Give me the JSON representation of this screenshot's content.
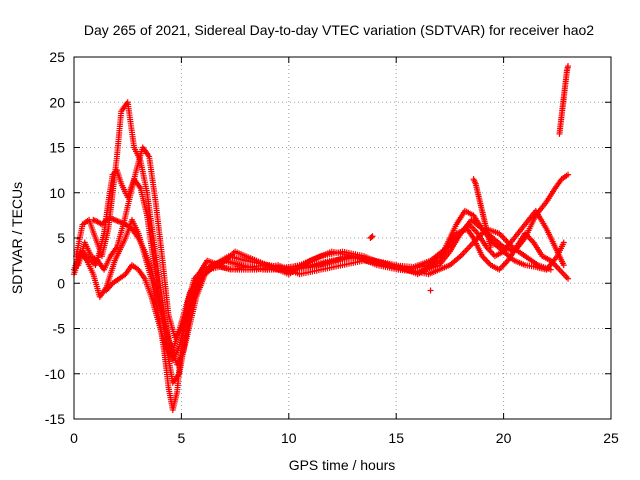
{
  "chart_data": {
    "type": "scatter",
    "title": "Day 265 of 2021, Sidereal Day-to-day VTEC variation (SDTVAR) for receiver hao2",
    "xlabel": "GPS time / hours",
    "ylabel": "SDTVAR / TECUs",
    "xlim": [
      0,
      25
    ],
    "ylim": [
      -15,
      25
    ],
    "xticks": [
      "0",
      "5",
      "10",
      "15",
      "20",
      "25"
    ],
    "yticks": [
      "-15",
      "-10",
      "-5",
      "0",
      "5",
      "10",
      "15",
      "20",
      "25"
    ],
    "grid": true,
    "marker": "+",
    "color": "#ff0000",
    "series": [
      {
        "name": "s1",
        "x": [
          0.0,
          0.3,
          0.6,
          0.9,
          1.2,
          1.5,
          1.7,
          1.9,
          2.1,
          2.4,
          2.7,
          3.0,
          3.3,
          3.6,
          3.9,
          4.2,
          4.4,
          4.6,
          4.8,
          5.0,
          5.3,
          5.6,
          6.0,
          6.5,
          7.0,
          8.0,
          9.0,
          10.0,
          11.0,
          12.0,
          13.0,
          14.0,
          15.0,
          16.0,
          17.0,
          17.8,
          18.3,
          18.6,
          19.0,
          19.4,
          19.8,
          20.2,
          20.6,
          21.0,
          21.4,
          21.8,
          22.2,
          22.6,
          23.0
        ],
        "y": [
          1.5,
          3.5,
          2.5,
          1.0,
          -1.5,
          -0.5,
          1.0,
          2.5,
          3.5,
          5.0,
          7.0,
          5.5,
          3.0,
          0.5,
          -3.0,
          -7.5,
          -11.5,
          -14.0,
          -12.0,
          -7.0,
          -2.0,
          0.5,
          1.5,
          2.0,
          2.5,
          1.8,
          1.5,
          1.8,
          2.0,
          2.5,
          2.8,
          2.5,
          2.0,
          1.0,
          2.5,
          5.5,
          6.0,
          5.0,
          3.0,
          2.0,
          1.5,
          2.5,
          4.0,
          5.5,
          4.5,
          3.0,
          2.5,
          1.5,
          0.5
        ]
      },
      {
        "name": "s2",
        "x": [
          0.1,
          0.4,
          0.7,
          1.0,
          1.3,
          1.6,
          1.8,
          2.0,
          2.2,
          2.5,
          2.8,
          3.1,
          3.4,
          3.7,
          4.0,
          4.3,
          4.6,
          4.9,
          5.2,
          5.5,
          5.8,
          6.2,
          6.8,
          7.5,
          8.5,
          9.5,
          10.5,
          11.5,
          12.5,
          13.5,
          14.5,
          15.5,
          16.5,
          17.2,
          17.8,
          18.2,
          18.6,
          19.0,
          19.5,
          20.0,
          20.5,
          21.0,
          21.5,
          22.0,
          22.5,
          22.8
        ],
        "y": [
          3.0,
          6.5,
          7.0,
          5.0,
          3.0,
          6.0,
          10.0,
          14.0,
          19.0,
          20.0,
          15.0,
          13.5,
          10.0,
          5.0,
          0.0,
          -5.0,
          -8.5,
          -7.0,
          -4.0,
          -1.0,
          1.0,
          2.5,
          2.0,
          3.5,
          2.5,
          1.5,
          2.0,
          3.0,
          3.5,
          3.0,
          2.0,
          1.5,
          2.0,
          3.5,
          6.5,
          8.0,
          7.5,
          6.0,
          4.5,
          3.5,
          2.5,
          2.0,
          1.8,
          1.5,
          3.0,
          4.5
        ]
      },
      {
        "name": "s3",
        "x": [
          0.2,
          0.5,
          0.8,
          1.1,
          1.4,
          1.7,
          2.0,
          2.3,
          2.6,
          2.9,
          3.2,
          3.5,
          3.8,
          4.1,
          4.4,
          4.7,
          5.0,
          5.3,
          5.6,
          6.0,
          6.5,
          7.2,
          8.0,
          9.0,
          10.0,
          11.0,
          12.0,
          13.0,
          14.0,
          15.0,
          16.0,
          17.0,
          17.5,
          18.0,
          18.5,
          19.0,
          19.5,
          20.0,
          20.5,
          21.0,
          21.5,
          22.0,
          22.4,
          22.7,
          23.0
        ],
        "y": [
          2.0,
          4.5,
          3.0,
          2.5,
          1.5,
          3.0,
          4.0,
          6.5,
          9.5,
          12.5,
          15.0,
          14.0,
          9.0,
          3.0,
          -3.5,
          -6.0,
          -5.0,
          -3.5,
          -1.0,
          1.0,
          2.0,
          3.0,
          2.5,
          2.0,
          1.0,
          2.5,
          3.5,
          3.0,
          2.5,
          1.8,
          1.2,
          2.0,
          3.5,
          5.5,
          7.0,
          6.0,
          5.0,
          4.0,
          3.5,
          5.0,
          7.5,
          9.0,
          10.5,
          11.5,
          12.0
        ]
      },
      {
        "name": "s4",
        "x": [
          1.5,
          1.8,
          2.1,
          2.4,
          2.7,
          3.0,
          3.3,
          3.6,
          3.9,
          4.2,
          4.5,
          4.8,
          5.1,
          5.4,
          5.8,
          6.2,
          6.8,
          7.5,
          8.5,
          9.5,
          10.5,
          11.5,
          12.5,
          13.5,
          14.5,
          15.5,
          16.5,
          17.0,
          17.5,
          18.0,
          18.6,
          19.2,
          19.8,
          20.4,
          21.0,
          21.6,
          22.2
        ],
        "y": [
          -0.8,
          0.0,
          0.5,
          1.0,
          2.0,
          1.5,
          0.5,
          -1.5,
          -4.0,
          -6.5,
          -8.0,
          -6.0,
          -3.5,
          -1.0,
          0.5,
          1.5,
          1.8,
          1.5,
          1.5,
          2.0,
          1.0,
          1.5,
          2.0,
          2.5,
          2.0,
          1.5,
          1.0,
          1.5,
          2.0,
          3.0,
          4.5,
          6.0,
          5.5,
          4.0,
          3.0,
          2.0,
          1.5
        ]
      },
      {
        "name": "s5",
        "x": [
          0.0,
          0.2,
          0.4,
          0.6,
          0.8,
          1.0,
          1.2,
          1.4,
          1.6,
          1.8,
          2.0,
          2.2,
          2.5,
          2.8,
          3.1,
          3.4,
          3.7,
          4.0,
          4.3,
          4.6,
          4.9,
          5.2,
          5.5,
          5.9,
          6.4,
          7.0,
          7.8,
          8.8,
          9.8,
          10.8,
          11.8,
          12.8,
          13.8,
          14.8,
          15.8,
          16.6,
          17.4,
          18.0,
          18.4,
          18.8,
          19.2,
          19.6,
          20.0,
          20.5,
          21.0,
          21.5,
          22.0,
          22.4,
          22.8
        ],
        "y": [
          1.0,
          2.5,
          3.5,
          3.0,
          2.5,
          2.0,
          3.5,
          5.5,
          9.0,
          12.0,
          12.5,
          11.0,
          9.5,
          11.5,
          10.5,
          7.5,
          2.5,
          -2.0,
          -7.0,
          -11.0,
          -10.0,
          -6.0,
          -2.0,
          0.5,
          2.0,
          2.5,
          2.0,
          1.5,
          1.5,
          1.8,
          2.2,
          3.0,
          2.5,
          2.0,
          1.8,
          2.5,
          4.0,
          5.5,
          6.5,
          5.5,
          4.0,
          3.0,
          3.5,
          5.0,
          6.5,
          8.0,
          6.0,
          4.0,
          2.0
        ]
      },
      {
        "name": "s6",
        "x": [
          0.9,
          1.1,
          1.3,
          1.5,
          1.7,
          1.9,
          2.1,
          2.4,
          2.7,
          3.0,
          3.3,
          3.6,
          3.9,
          4.2,
          4.5,
          4.8,
          5.1,
          5.4,
          5.7,
          6.1,
          6.6,
          7.3,
          8.1,
          9.1,
          10.1,
          11.1,
          12.1,
          13.1,
          14.1,
          15.1,
          16.1
        ],
        "y": [
          7.0,
          6.8,
          6.5,
          7.0,
          7.2,
          7.0,
          6.8,
          6.5,
          6.0,
          5.0,
          3.5,
          1.5,
          -1.0,
          -4.0,
          -7.0,
          -9.0,
          -7.5,
          -4.5,
          -1.5,
          1.0,
          2.0,
          1.5,
          1.8,
          2.0,
          1.5,
          1.8,
          2.5,
          3.0,
          2.0,
          1.5,
          1.2
        ]
      },
      {
        "name": "s7",
        "x": [
          22.6,
          22.65,
          22.7,
          22.75,
          22.8,
          22.85,
          22.9,
          22.95,
          23.0
        ],
        "y": [
          16.5,
          17.5,
          18.5,
          19.5,
          20.5,
          21.5,
          22.5,
          23.5,
          24.0
        ]
      },
      {
        "name": "s8",
        "x": [
          18.6,
          18.7,
          18.8,
          18.9,
          19.0,
          19.1,
          19.2,
          19.3,
          19.4
        ],
        "y": [
          11.5,
          11.0,
          10.0,
          9.0,
          8.0,
          7.0,
          6.0,
          5.0,
          4.0
        ]
      },
      {
        "name": "s9",
        "x": [
          13.8,
          13.9
        ],
        "y": [
          5.0,
          5.2
        ]
      },
      {
        "name": "s10",
        "x": [
          16.6
        ],
        "y": [
          -0.8
        ]
      }
    ]
  }
}
